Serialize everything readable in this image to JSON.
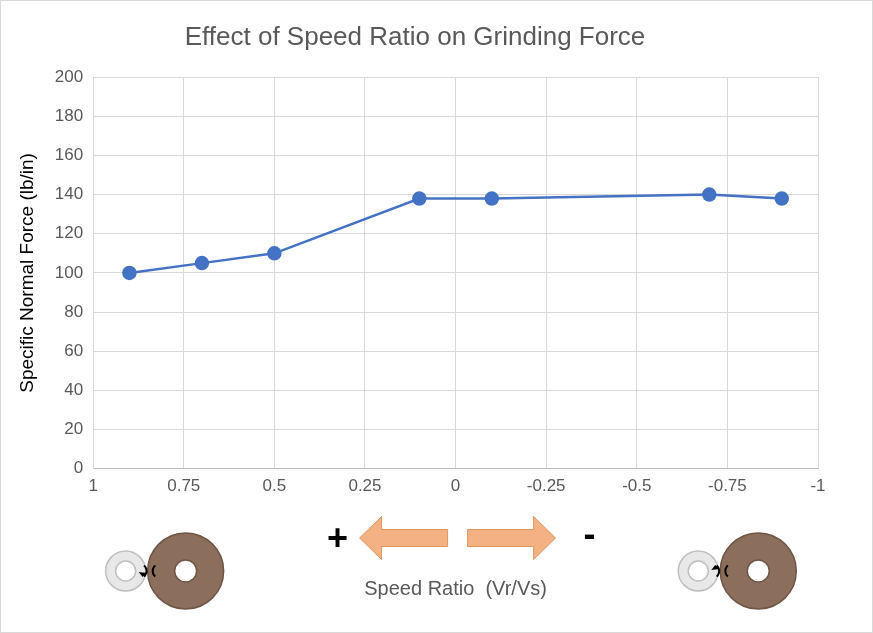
{
  "chart_data": {
    "type": "line",
    "title": "Effect of Speed Ratio on Grinding Force",
    "x_label": "Speed Ratio  (Vr/Vs)",
    "y_label": "Specific Normal Force (lb/in)",
    "x": [
      0.9,
      0.7,
      0.5,
      0.1,
      -0.1,
      -0.7,
      -0.9
    ],
    "values": [
      100,
      105,
      110,
      138,
      138,
      140,
      138
    ],
    "color": "#4472c4",
    "marker": "circle",
    "line_style": "solid",
    "xlim": [
      1,
      -1
    ],
    "xticks": [
      1,
      0.75,
      0.5,
      0.25,
      0,
      -0.25,
      -0.5,
      -0.75,
      -1
    ],
    "ylim": [
      0,
      200
    ],
    "yticks": [
      0,
      20,
      40,
      60,
      80,
      100,
      120,
      140,
      160,
      180,
      200
    ],
    "grid": true,
    "annotations": [
      "+",
      "-"
    ]
  }
}
